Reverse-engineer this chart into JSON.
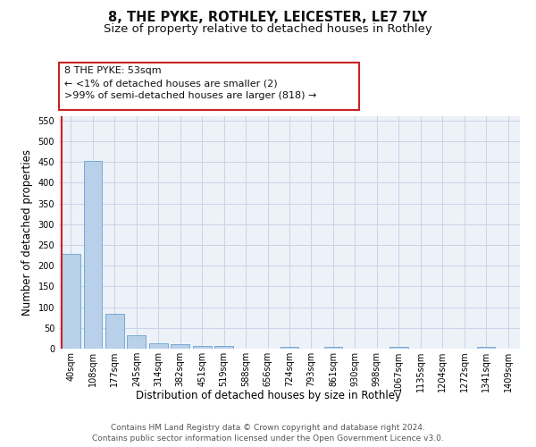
{
  "title": "8, THE PYKE, ROTHLEY, LEICESTER, LE7 7LY",
  "subtitle": "Size of property relative to detached houses in Rothley",
  "xlabel": "Distribution of detached houses by size in Rothley",
  "ylabel": "Number of detached properties",
  "footer_line1": "Contains HM Land Registry data © Crown copyright and database right 2024.",
  "footer_line2": "Contains public sector information licensed under the Open Government Licence v3.0.",
  "categories": [
    "40sqm",
    "108sqm",
    "177sqm",
    "245sqm",
    "314sqm",
    "382sqm",
    "451sqm",
    "519sqm",
    "588sqm",
    "656sqm",
    "724sqm",
    "793sqm",
    "861sqm",
    "930sqm",
    "998sqm",
    "1067sqm",
    "1135sqm",
    "1204sqm",
    "1272sqm",
    "1341sqm",
    "1409sqm"
  ],
  "values": [
    228,
    453,
    84,
    32,
    13,
    10,
    7,
    6,
    0,
    0,
    4,
    0,
    5,
    0,
    0,
    4,
    0,
    0,
    0,
    4,
    0
  ],
  "bar_color": "#b8d0ea",
  "bar_edge_color": "#6aa0cc",
  "highlight_color": "#cc2222",
  "ylim": [
    0,
    560
  ],
  "yticks": [
    0,
    50,
    100,
    150,
    200,
    250,
    300,
    350,
    400,
    450,
    500,
    550
  ],
  "annotation_line1": "8 THE PYKE: 53sqm",
  "annotation_line2": "← <1% of detached houses are smaller (2)",
  "annotation_line3": ">99% of semi-detached houses are larger (818) →",
  "bg_color": "#edf2f9",
  "grid_color": "#c8d4e8",
  "title_fontsize": 10.5,
  "subtitle_fontsize": 9.5,
  "axis_label_fontsize": 8.5,
  "tick_fontsize": 7,
  "annotation_fontsize": 8,
  "footer_fontsize": 6.5
}
